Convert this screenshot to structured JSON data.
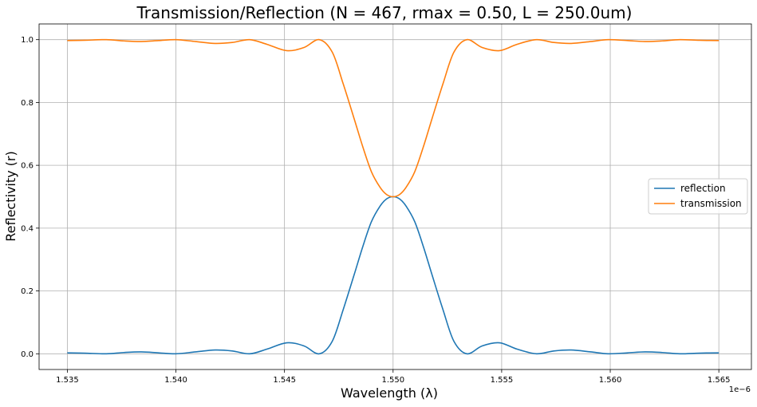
{
  "chart_data": {
    "type": "line",
    "title": "Transmission/Reflection (N = 467, rmax = 0.50, L = 250.0um)",
    "xlabel": "Wavelength (λ)",
    "ylabel": "Reflectivity (r)",
    "x_offset_label": "1e−6",
    "xlim": [
      1.5337,
      1.5665
    ],
    "ylim": [
      -0.05,
      1.05
    ],
    "x_ticks": [
      1.535,
      1.54,
      1.545,
      1.55,
      1.555,
      1.56,
      1.565
    ],
    "x_tick_labels": [
      "1.535",
      "1.540",
      "1.545",
      "1.550",
      "1.555",
      "1.560",
      "1.565"
    ],
    "y_ticks": [
      0.0,
      0.2,
      0.4,
      0.6,
      0.8,
      1.0
    ],
    "y_tick_labels": [
      "0.0",
      "0.2",
      "0.4",
      "0.6",
      "0.8",
      "1.0"
    ],
    "grid": true,
    "legend_position": "center-right",
    "series": [
      {
        "name": "reflection",
        "color": "#1f77b4",
        "x": [
          1.535,
          1.5358,
          1.5368,
          1.5376,
          1.5384,
          1.5392,
          1.54,
          1.5409,
          1.5418,
          1.5426,
          1.5434,
          1.5442,
          1.5451,
          1.5459,
          1.5466,
          1.5472,
          1.5477,
          1.5482,
          1.5486,
          1.549,
          1.5494,
          1.5497,
          1.55,
          1.5503,
          1.5506,
          1.551,
          1.5514,
          1.5518,
          1.5523,
          1.5528,
          1.5534,
          1.5541,
          1.5549,
          1.5557,
          1.5566,
          1.5574,
          1.5582,
          1.5591,
          1.5599,
          1.5608,
          1.5616,
          1.5624,
          1.5632,
          1.5641,
          1.565
        ],
        "y": [
          0.003,
          0.002,
          0.0,
          0.004,
          0.006,
          0.003,
          0.0,
          0.006,
          0.012,
          0.009,
          0.0,
          0.015,
          0.035,
          0.025,
          0.0,
          0.04,
          0.14,
          0.25,
          0.34,
          0.42,
          0.47,
          0.493,
          0.5,
          0.493,
          0.47,
          0.42,
          0.34,
          0.25,
          0.14,
          0.04,
          0.0,
          0.025,
          0.035,
          0.015,
          0.0,
          0.009,
          0.012,
          0.006,
          0.0,
          0.003,
          0.006,
          0.004,
          0.0,
          0.002,
          0.003
        ]
      },
      {
        "name": "transmission",
        "color": "#ff7f0e",
        "x": [
          1.535,
          1.5358,
          1.5368,
          1.5376,
          1.5384,
          1.5392,
          1.54,
          1.5409,
          1.5418,
          1.5426,
          1.5434,
          1.5442,
          1.5451,
          1.5459,
          1.5466,
          1.5472,
          1.5477,
          1.5482,
          1.5486,
          1.549,
          1.5494,
          1.5497,
          1.55,
          1.5503,
          1.5506,
          1.551,
          1.5514,
          1.5518,
          1.5523,
          1.5528,
          1.5534,
          1.5541,
          1.5549,
          1.5557,
          1.5566,
          1.5574,
          1.5582,
          1.5591,
          1.5599,
          1.5608,
          1.5616,
          1.5624,
          1.5632,
          1.5641,
          1.565
        ],
        "y": [
          0.997,
          0.998,
          1.0,
          0.996,
          0.994,
          0.997,
          1.0,
          0.994,
          0.988,
          0.991,
          1.0,
          0.985,
          0.965,
          0.975,
          1.0,
          0.96,
          0.86,
          0.75,
          0.66,
          0.58,
          0.53,
          0.507,
          0.5,
          0.507,
          0.53,
          0.58,
          0.66,
          0.75,
          0.86,
          0.96,
          1.0,
          0.975,
          0.965,
          0.985,
          1.0,
          0.991,
          0.988,
          0.994,
          1.0,
          0.997,
          0.994,
          0.996,
          1.0,
          0.998,
          0.997
        ]
      }
    ]
  }
}
